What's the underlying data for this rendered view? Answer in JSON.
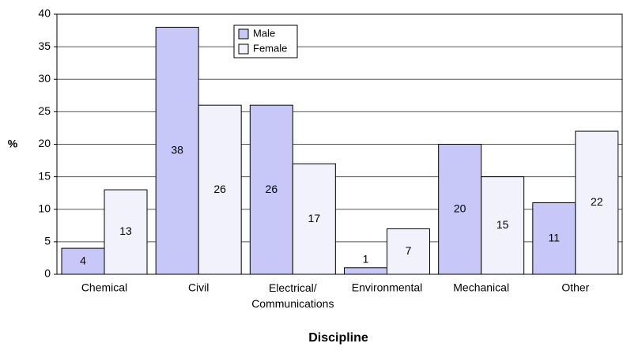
{
  "chart_data": {
    "type": "bar",
    "categories": [
      "Chemical",
      "Civil",
      "Electrical/\nCommunications",
      "Environmental",
      "Mechanical",
      "Other"
    ],
    "series": [
      {
        "name": "Male",
        "color": "#c8c8f8",
        "values": [
          4,
          38,
          26,
          1,
          20,
          11
        ]
      },
      {
        "name": "Female",
        "color": "#f2f2fc",
        "values": [
          13,
          26,
          17,
          7,
          15,
          22
        ]
      }
    ],
    "ylim": [
      0,
      40
    ],
    "yticks": [
      0,
      5,
      10,
      15,
      20,
      25,
      30,
      35,
      40
    ],
    "grid": true,
    "ylabel": "%",
    "xlabel": "Discipline",
    "legend": "top"
  }
}
